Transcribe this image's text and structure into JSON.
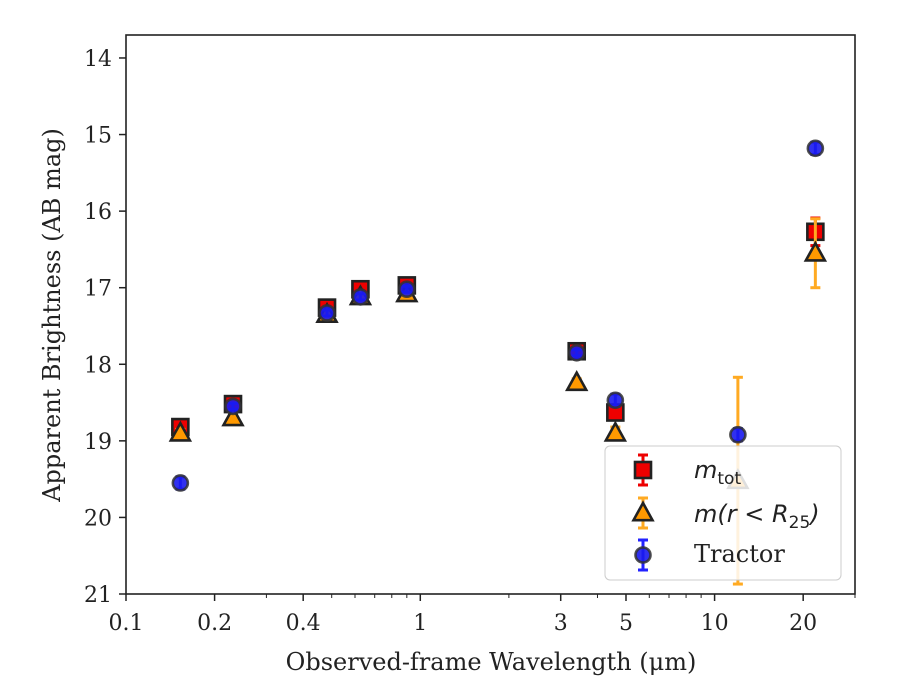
{
  "chart_data": {
    "type": "scatter",
    "title": "",
    "xlabel": "Observed-frame Wavelength (μm)",
    "ylabel": "Apparent Brightness (AB mag)",
    "xscale": "log",
    "xlim": [
      0.1,
      30
    ],
    "ylim": [
      21,
      13.7
    ],
    "y_inverted": true,
    "x_ticks": [
      0.1,
      0.2,
      0.4,
      1,
      3,
      5,
      10,
      20
    ],
    "x_tick_labels": [
      "0.1",
      "0.2",
      "0.4",
      "1",
      "3",
      "5",
      "10",
      "20"
    ],
    "y_ticks": [
      14,
      15,
      16,
      17,
      18,
      19,
      20,
      21
    ],
    "y_tick_labels": [
      "14",
      "15",
      "16",
      "17",
      "18",
      "19",
      "20",
      "21"
    ],
    "grid": false,
    "legend_placement": "lower-right",
    "legend": {
      "mtot": "m",
      "mtot_sub": "tot",
      "mr_prefix": "m(r < R",
      "mr_sub": "25",
      "mr_suffix": ")",
      "tractor": "Tractor"
    },
    "series": [
      {
        "key": "mtot",
        "marker": "square",
        "color": "#ee0000",
        "ecolor": "#ee0000",
        "points": [
          {
            "x": 0.153,
            "y": 18.82,
            "err": 0.07
          },
          {
            "x": 0.231,
            "y": 18.52,
            "err": 0.05
          },
          {
            "x": 0.482,
            "y": 17.26,
            "err": 0.04
          },
          {
            "x": 0.626,
            "y": 17.02,
            "err": 0.04
          },
          {
            "x": 0.9,
            "y": 16.97,
            "err": 0.04
          },
          {
            "x": 3.4,
            "y": 17.83,
            "err": 0.05
          },
          {
            "x": 4.6,
            "y": 18.63,
            "err": 0.08
          },
          {
            "x": 22,
            "y": 16.27,
            "err": 0.18
          }
        ]
      },
      {
        "key": "mr25",
        "marker": "triangle",
        "color": "#ff9900",
        "ecolor": "#ffaa22",
        "points": [
          {
            "x": 0.153,
            "y": 18.9,
            "err": 0.05
          },
          {
            "x": 0.231,
            "y": 18.7,
            "err": 0.05
          },
          {
            "x": 0.482,
            "y": 17.35,
            "err": 0.04
          },
          {
            "x": 0.626,
            "y": 17.12,
            "err": 0.04
          },
          {
            "x": 0.9,
            "y": 17.08,
            "err": 0.04
          },
          {
            "x": 3.4,
            "y": 18.24,
            "err": 0.05
          },
          {
            "x": 4.6,
            "y": 18.9,
            "err": 0.08
          },
          {
            "x": 12,
            "y": 19.52,
            "err": 1.35
          },
          {
            "x": 22,
            "y": 16.55,
            "err": 0.45
          }
        ]
      },
      {
        "key": "tractor",
        "marker": "circle",
        "color": "#1a1aee",
        "ecolor": "#2222ff",
        "points": [
          {
            "x": 0.153,
            "y": 19.55,
            "err": 0.08
          },
          {
            "x": 0.231,
            "y": 18.55,
            "err": 0.04
          },
          {
            "x": 0.482,
            "y": 17.33,
            "err": 0.04
          },
          {
            "x": 0.626,
            "y": 17.12,
            "err": 0.04
          },
          {
            "x": 0.9,
            "y": 17.02,
            "err": 0.04
          },
          {
            "x": 3.4,
            "y": 17.85,
            "err": 0.04
          },
          {
            "x": 4.6,
            "y": 18.47,
            "err": 0.08
          },
          {
            "x": 12,
            "y": 18.92,
            "err": 0.08
          },
          {
            "x": 22,
            "y": 15.18,
            "err": 0.08
          }
        ]
      }
    ]
  }
}
